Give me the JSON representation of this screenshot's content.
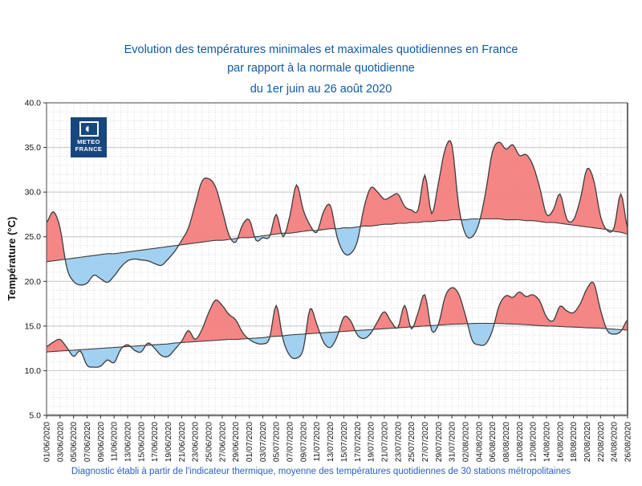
{
  "header": {
    "title_line1": "Evolution des températures minimales et maximales quotidiennes en France",
    "title_line2": "par rapport à la normale quotidienne",
    "title_line3": "du 1er juin au 26 août 2020"
  },
  "logo": {
    "line1": "METEO",
    "line2": "FRANCE"
  },
  "footer": {
    "caption": "Diagnostic établi à partir de l'indicateur thermique, moyenne des températures quotidiennes de 30 stations métropolitaines"
  },
  "chart_data": {
    "type": "area",
    "title": "Evolution des températures minimales et maximales quotidiennes en France par rapport à la normale quotidienne, du 1er juin au 26 août 2020",
    "ylabel": "Température (°C)",
    "ylim": [
      5.0,
      40.0
    ],
    "ytick_step": 5,
    "ytick_labels": [
      "40.0",
      "35.0",
      "30.0",
      "25.0",
      "20.0",
      "15.0",
      "10.0",
      "5.0"
    ],
    "x_tick_every_days": 2,
    "x_tick_labels": [
      "01/06/2020",
      "03/06/2020",
      "05/06/2020",
      "07/06/2020",
      "09/06/2020",
      "11/06/2020",
      "13/06/2020",
      "15/06/2020",
      "17/06/2020",
      "19/06/2020",
      "21/06/2020",
      "23/06/2020",
      "25/06/2020",
      "27/06/2020",
      "29/06/2020",
      "01/07/2020",
      "03/07/2020",
      "05/07/2020",
      "07/07/2020",
      "09/07/2020",
      "11/07/2020",
      "13/07/2020",
      "15/07/2020",
      "17/07/2020",
      "19/07/2020",
      "21/07/2020",
      "23/07/2020",
      "25/07/2020",
      "27/07/2020",
      "29/07/2020",
      "31/07/2020",
      "02/08/2020",
      "04/08/2020",
      "06/08/2020",
      "08/08/2020",
      "10/08/2020",
      "12/08/2020",
      "14/08/2020",
      "16/08/2020",
      "18/08/2020",
      "20/08/2020",
      "22/08/2020",
      "24/08/2020",
      "26/08/2020"
    ],
    "grid": "minor dotted 1 day / 1 °C, major solid every 5 °C",
    "legend_position": "none",
    "colors": {
      "above_normal": "#F4807F",
      "below_normal": "#9CCEF0",
      "line": "#3C3C3C"
    },
    "series": [
      {
        "name": "Température maximale quotidienne",
        "values": [
          26.6,
          27.8,
          26.0,
          21.5,
          20.0,
          19.6,
          19.8,
          20.7,
          20.3,
          19.9,
          20.6,
          21.6,
          22.3,
          22.5,
          22.4,
          22.3,
          22.0,
          21.8,
          22.5,
          23.4,
          24.6,
          26.0,
          28.6,
          31.2,
          31.5,
          30.6,
          28.0,
          25.2,
          24.4,
          26.3,
          26.9,
          24.6,
          24.9,
          25.0,
          27.5,
          25.0,
          27.3,
          30.8,
          28.0,
          26.3,
          25.5,
          27.8,
          28.5,
          25.0,
          23.2,
          23.1,
          24.5,
          28.3,
          30.5,
          30.0,
          29.2,
          29.5,
          29.8,
          28.4,
          28.0,
          28.0,
          31.9,
          27.6,
          31.0,
          34.8,
          35.3,
          28.5,
          25.3,
          25.0,
          26.5,
          30.0,
          34.5,
          35.6,
          34.8,
          35.3,
          34.1,
          34.2,
          33.0,
          30.5,
          27.5,
          28.0,
          29.8,
          27.0,
          26.9,
          29.2,
          32.6,
          31.3,
          27.3,
          25.7,
          26.0,
          29.8,
          26.0
        ]
      },
      {
        "name": "Température maximale normale",
        "values": [
          22.2,
          22.3,
          22.4,
          22.5,
          22.6,
          22.7,
          22.8,
          22.9,
          23.0,
          23.1,
          23.1,
          23.2,
          23.3,
          23.4,
          23.5,
          23.6,
          23.7,
          23.8,
          23.9,
          24.0,
          24.1,
          24.2,
          24.3,
          24.4,
          24.5,
          24.6,
          24.6,
          24.7,
          24.8,
          24.9,
          24.9,
          25.0,
          25.1,
          25.2,
          25.3,
          25.4,
          25.4,
          25.5,
          25.6,
          25.7,
          25.7,
          25.8,
          25.9,
          25.9,
          26.0,
          26.0,
          26.1,
          26.2,
          26.2,
          26.3,
          26.4,
          26.4,
          26.5,
          26.5,
          26.6,
          26.6,
          26.7,
          26.7,
          26.8,
          26.8,
          26.9,
          26.9,
          26.9,
          27.0,
          27.0,
          27.0,
          27.0,
          27.0,
          26.9,
          26.9,
          26.9,
          26.8,
          26.8,
          26.7,
          26.6,
          26.6,
          26.5,
          26.4,
          26.3,
          26.2,
          26.1,
          26.0,
          25.9,
          25.8,
          25.6,
          25.5,
          25.3
        ]
      },
      {
        "name": "Température minimale quotidienne",
        "values": [
          12.7,
          13.2,
          13.5,
          12.6,
          11.6,
          12.2,
          10.6,
          10.4,
          10.5,
          11.2,
          10.9,
          12.4,
          12.9,
          12.3,
          12.1,
          13.1,
          12.5,
          11.7,
          11.6,
          12.4,
          13.3,
          14.5,
          13.5,
          14.6,
          16.5,
          17.9,
          17.3,
          16.3,
          15.7,
          14.3,
          13.5,
          13.1,
          13.0,
          13.6,
          17.3,
          13.5,
          11.7,
          11.4,
          12.4,
          16.9,
          15.2,
          13.2,
          12.6,
          13.8,
          16.0,
          15.6,
          14.0,
          13.6,
          14.2,
          15.5,
          16.6,
          15.5,
          14.8,
          17.3,
          14.7,
          16.5,
          18.5,
          14.5,
          15.2,
          18.3,
          19.3,
          18.6,
          16.2,
          13.4,
          12.9,
          13.0,
          14.5,
          17.3,
          18.4,
          18.2,
          18.8,
          18.3,
          18.5,
          17.8,
          16.0,
          15.6,
          17.2,
          16.7,
          16.5,
          17.5,
          19.2,
          19.8,
          16.8,
          14.5,
          14.1,
          14.4,
          15.7
        ]
      },
      {
        "name": "Température minimale normale",
        "values": [
          12.1,
          12.15,
          12.2,
          12.25,
          12.3,
          12.35,
          12.4,
          12.45,
          12.5,
          12.55,
          12.6,
          12.65,
          12.7,
          12.75,
          12.8,
          12.85,
          12.9,
          12.95,
          13.0,
          13.1,
          13.15,
          13.2,
          13.25,
          13.3,
          13.35,
          13.4,
          13.45,
          13.5,
          13.5,
          13.55,
          13.6,
          13.65,
          13.7,
          13.8,
          13.85,
          13.9,
          14.0,
          14.05,
          14.1,
          14.15,
          14.2,
          14.25,
          14.3,
          14.35,
          14.4,
          14.45,
          14.5,
          14.55,
          14.6,
          14.65,
          14.7,
          14.75,
          14.8,
          14.85,
          14.9,
          14.95,
          15.0,
          15.05,
          15.1,
          15.15,
          15.2,
          15.22,
          15.25,
          15.28,
          15.3,
          15.3,
          15.3,
          15.28,
          15.25,
          15.22,
          15.2,
          15.15,
          15.1,
          15.05,
          15.0,
          14.98,
          14.95,
          14.9,
          14.88,
          14.85,
          14.8,
          14.78,
          14.75,
          14.7,
          14.65,
          14.6,
          14.55
        ]
      }
    ]
  }
}
